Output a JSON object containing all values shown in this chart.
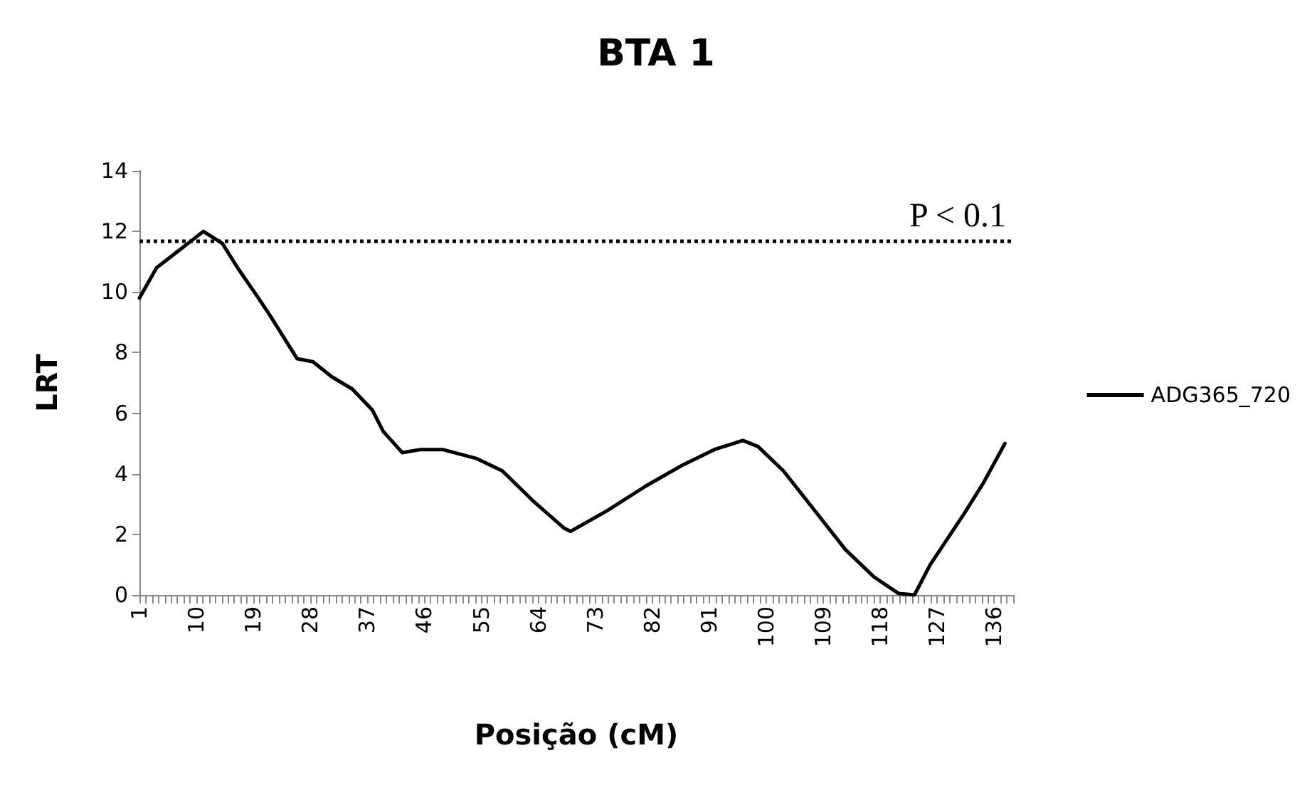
{
  "chart_data": {
    "type": "line",
    "title": "BTA 1",
    "xlabel": "Posição (cM)",
    "ylabel": "LRT",
    "xlim": [
      1,
      139
    ],
    "xticks": [
      1,
      10,
      19,
      28,
      37,
      46,
      55,
      64,
      73,
      82,
      91,
      100,
      109,
      118,
      127,
      136
    ],
    "ylim": [
      0,
      14
    ],
    "yticks": [
      0,
      2,
      4,
      6,
      8,
      10,
      12,
      14
    ],
    "series": [
      {
        "name": "ADG365_720",
        "color": "#000000",
        "x": [
          1,
          3.7,
          7.4,
          11.1,
          14.1,
          16.5,
          19.8,
          21.7,
          25.9,
          28.4,
          31.4,
          34.6,
          37.8,
          39.5,
          42.5,
          45.4,
          48.9,
          54.3,
          58.3,
          63.2,
          68.1,
          69.1,
          75.0,
          81.0,
          86.9,
          91.8,
          96.3,
          98.7,
          102.7,
          107.6,
          112.5,
          117,
          120.9,
          123.4,
          125.9,
          131.3,
          134.3,
          137.7
        ],
        "values": [
          9.8,
          10.8,
          11.4,
          12.0,
          11.6,
          10.8,
          9.8,
          9.2,
          7.8,
          7.7,
          7.2,
          6.8,
          6.1,
          5.4,
          4.7,
          4.8,
          4.8,
          4.5,
          4.1,
          3.1,
          2.2,
          2.1,
          2.8,
          3.6,
          4.3,
          4.8,
          5.1,
          4.9,
          4.1,
          2.8,
          1.5,
          0.6,
          0.05,
          0,
          1.0,
          2.7,
          3.7,
          5.0
        ]
      }
    ],
    "ref_lines": [
      {
        "axis": "y",
        "value": 11.7,
        "label": "P < 0.1",
        "color": "#000000",
        "line_style": "dotted"
      }
    ],
    "legend": "right",
    "grid": false,
    "marker": "none",
    "line_style": "solid"
  }
}
